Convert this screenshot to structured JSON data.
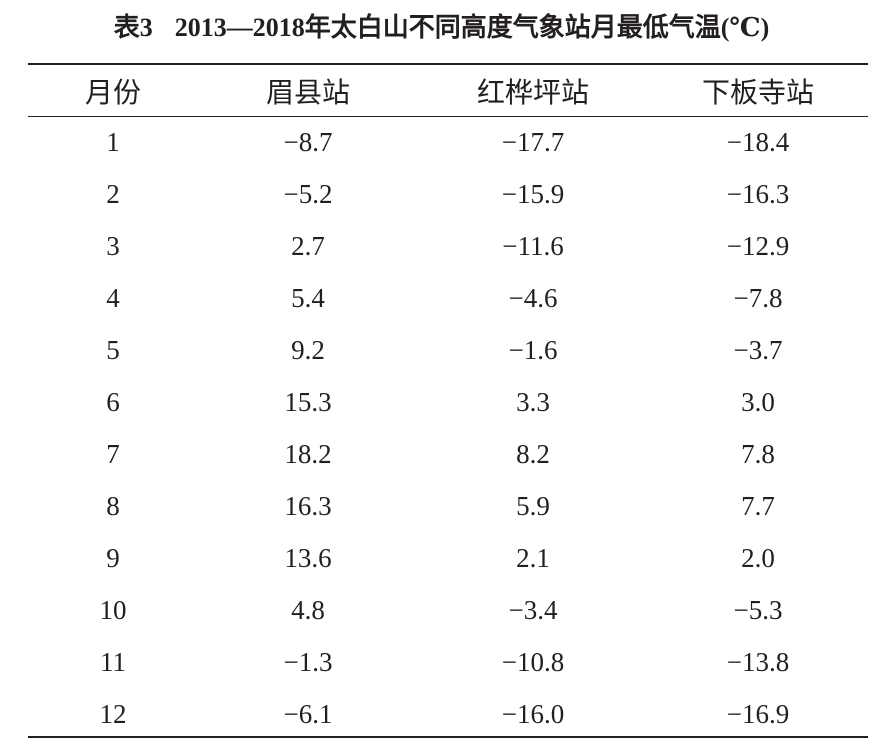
{
  "caption": {
    "label": "表3",
    "title": "2013—2018年太白山不同高度气象站月最低气温(℃)"
  },
  "table": {
    "headers": [
      "月份",
      "眉县站",
      "红桦坪站",
      "下板寺站"
    ],
    "rows": [
      [
        "1",
        "−8.7",
        "−17.7",
        "−18.4"
      ],
      [
        "2",
        "−5.2",
        "−15.9",
        "−16.3"
      ],
      [
        "3",
        "2.7",
        "−11.6",
        "−12.9"
      ],
      [
        "4",
        "5.4",
        "−4.6",
        "−7.8"
      ],
      [
        "5",
        "9.2",
        "−1.6",
        "−3.7"
      ],
      [
        "6",
        "15.3",
        "3.3",
        "3.0"
      ],
      [
        "7",
        "18.2",
        "8.2",
        "7.8"
      ],
      [
        "8",
        "16.3",
        "5.9",
        "7.7"
      ],
      [
        "9",
        "13.6",
        "2.1",
        "2.0"
      ],
      [
        "10",
        "4.8",
        "−3.4",
        "−5.3"
      ],
      [
        "11",
        "−1.3",
        "−10.8",
        "−13.8"
      ],
      [
        "12",
        "−6.1",
        "−16.0",
        "−16.9"
      ]
    ]
  }
}
